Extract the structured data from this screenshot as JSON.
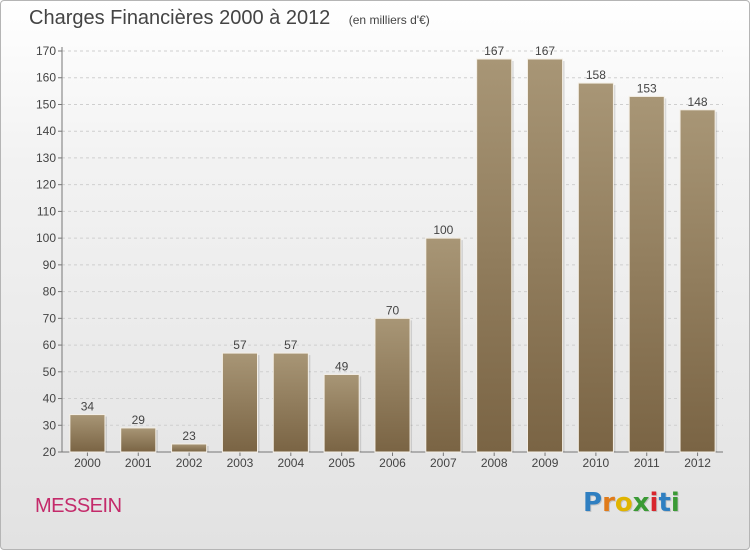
{
  "header": {
    "title": "Charges Financières 2000 à 2012",
    "subtitle": "(en milliers d'€)"
  },
  "footer": {
    "commune": "MESSEIN",
    "logo_text": "Proxiti",
    "logo_letters": [
      {
        "char": "P",
        "color": "#2f7fc1"
      },
      {
        "char": "r",
        "color": "#e07b1a"
      },
      {
        "char": "o",
        "color": "#e0b400"
      },
      {
        "char": "x",
        "color": "#3a9a35"
      },
      {
        "char": "i",
        "color": "#d8262d"
      },
      {
        "char": "t",
        "color": "#2f7fc1"
      },
      {
        "char": "i",
        "color": "#3a9a35"
      }
    ]
  },
  "colors": {
    "bar_light": "#a89676",
    "bar_dark": "#7a6444",
    "grid": "#cfcfcf",
    "axis": "#777777",
    "text": "#444444"
  },
  "chart_data": {
    "type": "bar",
    "categories": [
      "2000",
      "2001",
      "2002",
      "2003",
      "2004",
      "2005",
      "2006",
      "2007",
      "2008",
      "2009",
      "2010",
      "2011",
      "2012"
    ],
    "values": [
      34,
      29,
      23,
      57,
      57,
      49,
      70,
      100,
      167,
      167,
      158,
      153,
      148
    ],
    "data_labels": [
      "34",
      "29",
      "23",
      "57",
      "57",
      "49",
      "70",
      "100",
      "167",
      "167",
      "158",
      "153",
      "148"
    ],
    "ylim": [
      20,
      170
    ],
    "yticks": [
      20,
      30,
      40,
      50,
      60,
      70,
      80,
      90,
      100,
      110,
      120,
      130,
      140,
      150,
      160,
      170
    ],
    "grid": true,
    "title": "Charges Financières 2000 à 2012",
    "xlabel": "",
    "ylabel": ""
  }
}
